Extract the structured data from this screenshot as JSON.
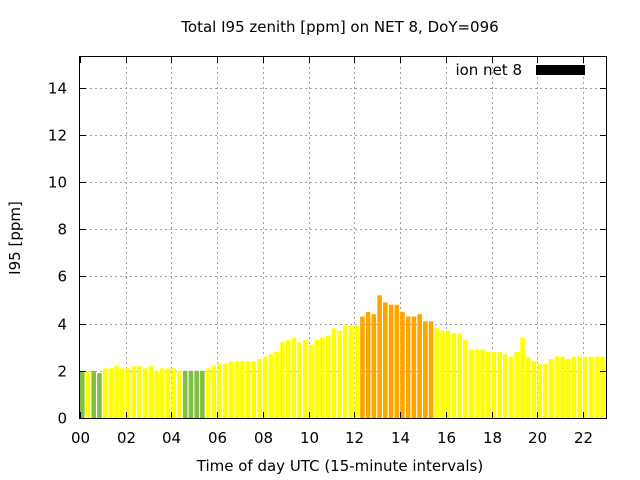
{
  "chart_data": {
    "type": "bar",
    "title": "Total I95 zenith [ppm] on NET 8, DoY=096",
    "xlabel": "Time of day UTC (15-minute intervals)",
    "ylabel": "I95 [ppm]",
    "xlim": [
      0,
      23.0
    ],
    "ylim": [
      0,
      15.3
    ],
    "interval_hours": 0.25,
    "bar_width_hours": 0.2,
    "x_ticks": [
      0,
      2,
      4,
      6,
      8,
      10,
      12,
      14,
      16,
      18,
      20,
      22
    ],
    "x_tick_labels": [
      "00",
      "02",
      "04",
      "06",
      "08",
      "10",
      "12",
      "14",
      "16",
      "18",
      "20",
      "22"
    ],
    "y_ticks": [
      0,
      2,
      4,
      6,
      8,
      10,
      12,
      14
    ],
    "y_tick_labels": [
      "0",
      "2",
      "4",
      "6",
      "8",
      "10",
      "12",
      "14"
    ],
    "grid": true,
    "legend": {
      "position": "top-right",
      "label": "ion net 8",
      "color": "#000000"
    },
    "color_classes": {
      "green": "#80c040",
      "yellow": "#ffff00",
      "orange": "#ffa500"
    },
    "series": [
      {
        "x": [
          0.0,
          0.25,
          0.5,
          0.75,
          1.0,
          1.25,
          1.5,
          1.75,
          2.0,
          2.25,
          2.5,
          2.75,
          3.0,
          3.25,
          3.5,
          3.75,
          4.0,
          4.25,
          4.5,
          4.75,
          5.0,
          5.25,
          5.5,
          5.75,
          6.0,
          6.25,
          6.5,
          6.75,
          7.0,
          7.25,
          7.5,
          7.75,
          8.0,
          8.25,
          8.5,
          8.75,
          9.0,
          9.25,
          9.5,
          9.75,
          10.0,
          10.25,
          10.5,
          10.75,
          11.0,
          11.25,
          11.5,
          11.75,
          12.0,
          12.25,
          12.5,
          12.75,
          13.0,
          13.25,
          13.5,
          13.75,
          14.0,
          14.25,
          14.5,
          14.75,
          15.0,
          15.25,
          15.5,
          15.75,
          16.0,
          16.25,
          16.5,
          16.75,
          17.0,
          17.25,
          17.5,
          17.75,
          18.0,
          18.25,
          18.5,
          18.75,
          19.0,
          19.25,
          19.5,
          19.75,
          20.0,
          20.25,
          20.5,
          20.75,
          21.0,
          21.25,
          21.5,
          21.75,
          22.0,
          22.25,
          22.5,
          22.75
        ],
        "values": [
          2.0,
          2.0,
          2.0,
          1.9,
          2.1,
          2.1,
          2.2,
          2.1,
          2.1,
          2.2,
          2.2,
          2.1,
          2.2,
          2.0,
          2.1,
          2.1,
          2.1,
          2.0,
          2.0,
          2.0,
          2.0,
          2.0,
          2.1,
          2.2,
          2.3,
          2.3,
          2.4,
          2.4,
          2.4,
          2.4,
          2.4,
          2.5,
          2.6,
          2.7,
          2.8,
          3.2,
          3.3,
          3.4,
          3.2,
          3.3,
          3.1,
          3.3,
          3.4,
          3.5,
          3.8,
          3.7,
          3.9,
          3.9,
          3.9,
          4.3,
          4.5,
          4.4,
          5.2,
          4.9,
          4.8,
          4.8,
          4.5,
          4.3,
          4.3,
          4.4,
          4.1,
          4.1,
          3.8,
          3.7,
          3.7,
          3.6,
          3.6,
          3.3,
          2.9,
          2.9,
          2.9,
          2.8,
          2.8,
          2.8,
          2.7,
          2.6,
          2.8,
          3.4,
          2.6,
          2.4,
          2.3,
          2.3,
          2.5,
          2.6,
          2.6,
          2.5,
          2.6,
          2.6,
          2.6,
          2.6,
          2.6,
          2.6
        ],
        "color_class": [
          "green",
          "yellow",
          "green",
          "green",
          "yellow",
          "yellow",
          "yellow",
          "yellow",
          "yellow",
          "yellow",
          "yellow",
          "yellow",
          "yellow",
          "yellow",
          "yellow",
          "yellow",
          "yellow",
          "yellow",
          "green",
          "green",
          "green",
          "green",
          "yellow",
          "yellow",
          "yellow",
          "yellow",
          "yellow",
          "yellow",
          "yellow",
          "yellow",
          "yellow",
          "yellow",
          "yellow",
          "yellow",
          "yellow",
          "yellow",
          "yellow",
          "yellow",
          "yellow",
          "yellow",
          "yellow",
          "yellow",
          "yellow",
          "yellow",
          "yellow",
          "yellow",
          "yellow",
          "yellow",
          "yellow",
          "orange",
          "orange",
          "orange",
          "orange",
          "orange",
          "orange",
          "orange",
          "orange",
          "orange",
          "orange",
          "orange",
          "orange",
          "orange",
          "yellow",
          "yellow",
          "yellow",
          "yellow",
          "yellow",
          "yellow",
          "yellow",
          "yellow",
          "yellow",
          "yellow",
          "yellow",
          "yellow",
          "yellow",
          "yellow",
          "yellow",
          "yellow",
          "yellow",
          "yellow",
          "yellow",
          "yellow",
          "yellow",
          "yellow",
          "yellow",
          "yellow",
          "yellow",
          "yellow",
          "yellow",
          "yellow",
          "yellow",
          "yellow"
        ]
      }
    ]
  }
}
